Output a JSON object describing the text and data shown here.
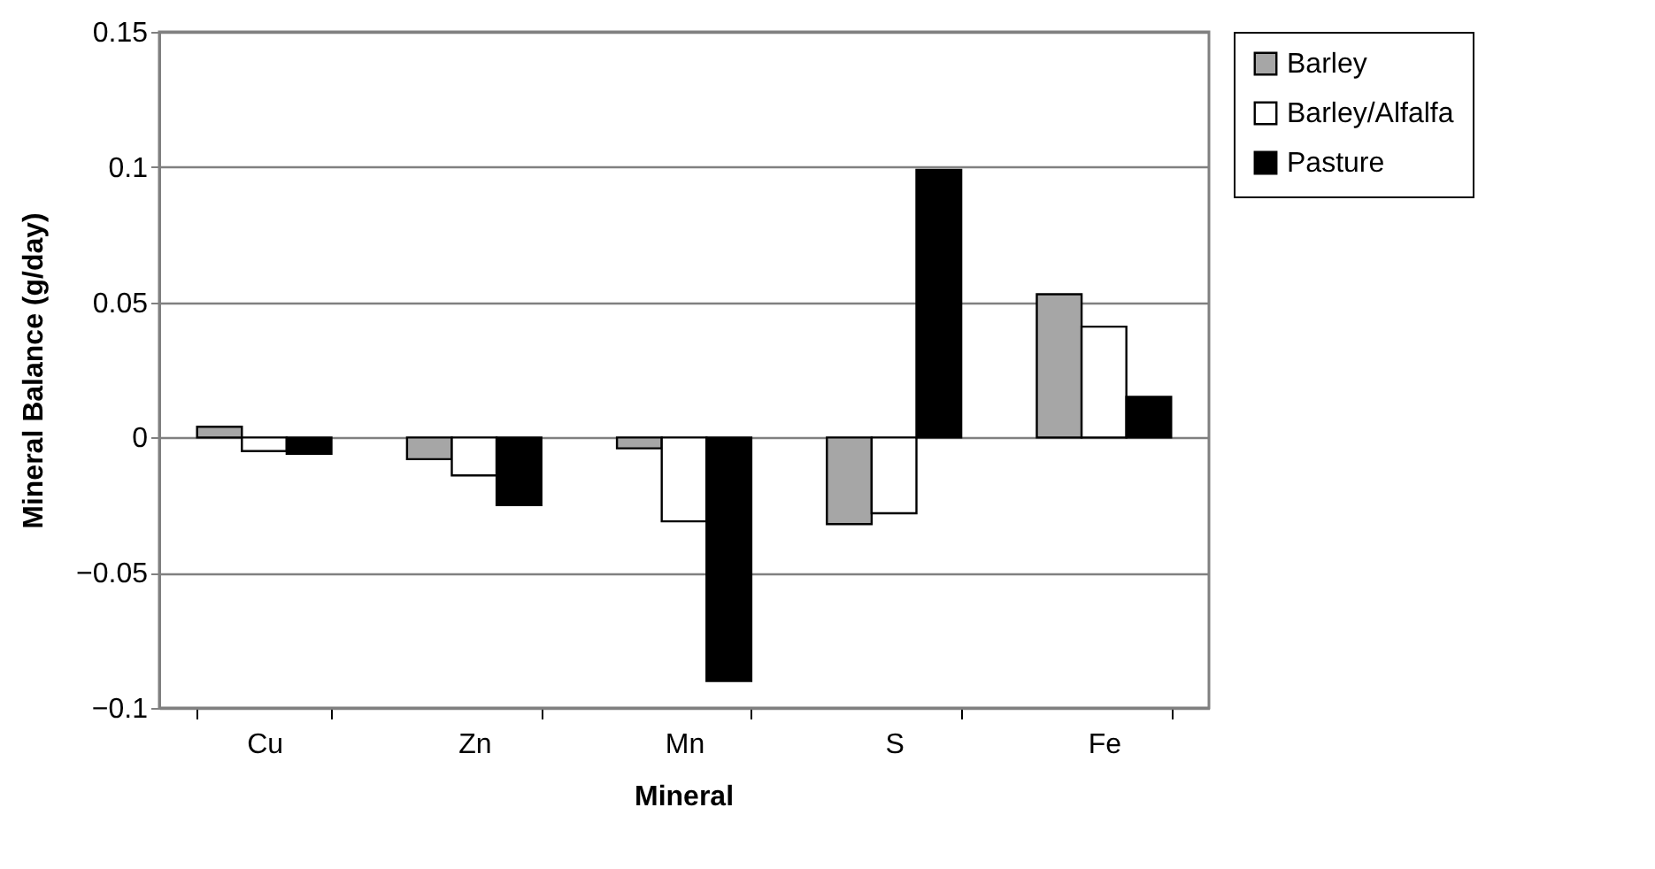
{
  "chart_data": {
    "type": "bar",
    "xlabel": "Mineral",
    "ylabel": "Mineral Balance (g/day)",
    "categories": [
      "Cu",
      "Zn",
      "Mn",
      "S",
      "Fe"
    ],
    "series": [
      {
        "name": "Barley",
        "color": "#a6a6a6",
        "values": [
          0.004,
          -0.008,
          -0.004,
          -0.032,
          0.053
        ]
      },
      {
        "name": "Barley/Alfalfa",
        "color": "#ffffff",
        "values": [
          -0.005,
          -0.014,
          -0.031,
          -0.028,
          0.041
        ]
      },
      {
        "name": "Pasture",
        "color": "#000000",
        "values": [
          -0.006,
          -0.025,
          -0.09,
          0.099,
          0.015
        ]
      }
    ],
    "ylim": [
      -0.1,
      0.15
    ],
    "yticks": [
      -0.1,
      -0.05,
      0,
      0.05,
      0.1,
      0.15
    ],
    "grid": "y",
    "legend": "right"
  }
}
